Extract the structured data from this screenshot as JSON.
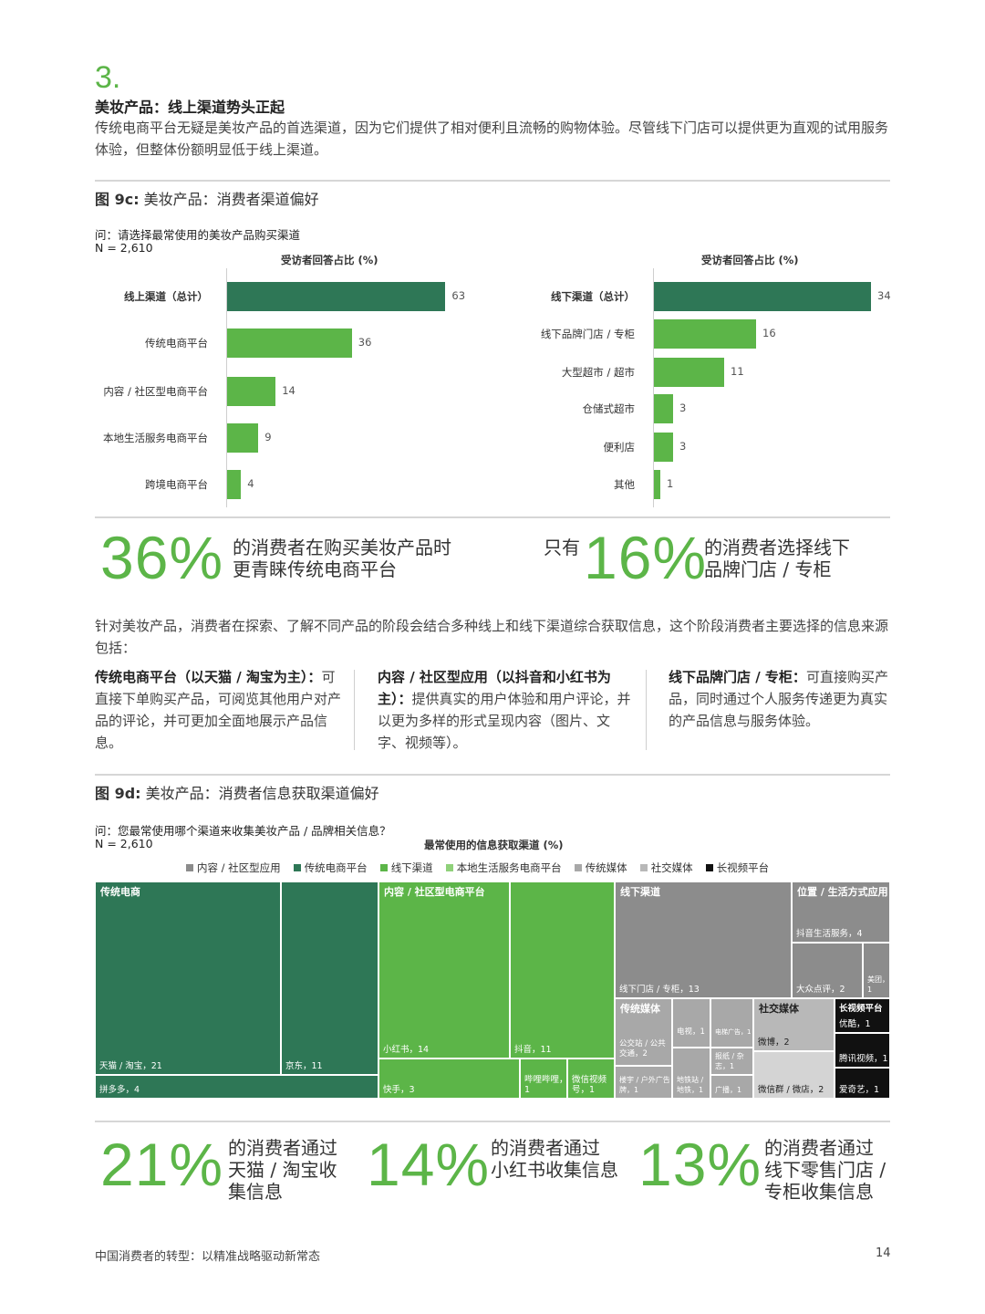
{
  "section": {
    "number": "3.",
    "title": "美妆产品：线上渠道势头正起",
    "intro": "传统电商平台无疑是美妆产品的首选渠道，因为它们提供了相对便利且流畅的购物体验。尽管线下门店可以提供更为直观的试用服务体验，但整体份额明显低于线上渠道。"
  },
  "fig9c": {
    "title_bold": "图 9c:",
    "title_rest": " 美妆产品：消费者渠道偏好",
    "question": "问：请选择最常使用的美妆产品购买渠道",
    "n": "N = 2,610"
  },
  "chart_data": [
    {
      "type": "bar",
      "orientation": "horizontal",
      "xlabel": "受访者回答占比 (%)",
      "categories": [
        "线上渠道（总计）",
        "传统电商平台",
        "内容 / 社区型电商平台",
        "本地生活服务电商平台",
        "跨境电商平台"
      ],
      "values": [
        63,
        36,
        14,
        9,
        4
      ],
      "colors": [
        "#2e7756",
        "#5cb548",
        "#5cb548",
        "#5cb548",
        "#5cb548"
      ]
    },
    {
      "type": "bar",
      "orientation": "horizontal",
      "xlabel": "受访者回答占比 (%)",
      "categories": [
        "线下渠道（总计）",
        "线下品牌门店 / 专柜",
        "大型超市 / 超市",
        "仓储式超市",
        "便利店",
        "其他"
      ],
      "values": [
        34,
        16,
        11,
        3,
        3,
        1
      ],
      "colors": [
        "#2e7756",
        "#5cb548",
        "#5cb548",
        "#5cb548",
        "#5cb548",
        "#5cb548"
      ]
    }
  ],
  "stats1": {
    "left_big": "36%",
    "left_text1": "的消费者在购买美妆产品时",
    "left_text2": "更青睐传统电商平台",
    "right_prefix": "只有",
    "right_big": "16%",
    "right_text1": "的消费者选择线下",
    "right_text2": "品牌门店 / 专柜"
  },
  "info": {
    "para": "针对美妆产品，消费者在探索、了解不同产品的阶段会结合多种线上和线下渠道综合获取信息，这个阶段消费者主要选择的信息来源包括：",
    "col1_bold": "传统电商平台（以天猫 / 淘宝为主）：",
    "col1_text": "可直接下单购买产品，可阅览其他用户对产品的评论，并可更加全面地展示产品信息。",
    "col2_bold": "内容 / 社区型应用（以抖音和小红书为主）：",
    "col2_text": "提供真实的用户体验和用户评论，并以更为多样的形式呈现内容（图片、文字、视频等）。",
    "col3_bold": "线下品牌门店 / 专柜：",
    "col3_text": "可直接购买产品，同时通过个人服务传递更为真实的产品信息与服务体验。"
  },
  "fig9d": {
    "title_bold": "图 9d:",
    "title_rest": " 美妆产品：消费者信息获取渠道偏好",
    "question": "问：您最常使用哪个渠道来收集美妆产品 / 品牌相关信息？",
    "n": "N = 2,610",
    "chart_title": "最常使用的信息获取渠道 (%)",
    "legend": [
      {
        "label": "内容 / 社区型应用",
        "color": "#8c8c8c"
      },
      {
        "label": "传统电商平台",
        "color": "#2e7756"
      },
      {
        "label": "线下渠道",
        "color": "#5cb548"
      },
      {
        "label": "本地生活服务电商平台",
        "color": "#8fd17a"
      },
      {
        "label": "传统媒体",
        "color": "#a8a8a8"
      },
      {
        "label": "社交媒体",
        "color": "#b8b8b8"
      },
      {
        "label": "长视频平台",
        "color": "#111111"
      }
    ],
    "groups": {
      "g1": "传统电商",
      "g2": "内容 / 社区型电商平台",
      "g3": "线下渠道",
      "g4": "位置 / 生活方式应用",
      "g5": "传统媒体",
      "g6": "社交媒体",
      "g7": "长视频平台"
    },
    "cells": {
      "tmall": "天猫 / 淘宝，21",
      "jd": "京东，11",
      "pdd": "拼多多，4",
      "xhs": "小红书，14",
      "douyin": "抖音，11",
      "kuaishou": "快手，3",
      "bilibili": "哔哩哔哩，1",
      "wechat_video": "微信视频号，1",
      "offline_store": "线下门店 / 专柜，13",
      "douyin_local": "抖音生活服务，4",
      "dianping": "大众点评，2",
      "meituan": "美团，1",
      "tv": "电视，1",
      "elevator": "电梯广告，1",
      "bus": "公交站 / 公共交通，2",
      "newspaper": "报纸 / 杂志，1",
      "building": "楼宇 / 户外广告牌，1",
      "subway": "地铁站 / 地铁，1",
      "radio": "广播，1",
      "weibo": "微博，2",
      "wechat_group": "微信群 / 微店，2",
      "youku": "优酷，1",
      "tencent": "腾讯视频，1",
      "iqiyi": "爱奇艺，1"
    }
  },
  "stats2": [
    {
      "big": "21%",
      "t1": "的消费者通过",
      "t2": "天猫 / 淘宝收",
      "t3": "集信息"
    },
    {
      "big": "14%",
      "t1": "的消费者通过",
      "t2": "小红书收集信息",
      "t3": ""
    },
    {
      "big": "13%",
      "t1": "的消费者通过",
      "t2": "线下零售门店 /",
      "t3": "专柜收集信息"
    }
  ],
  "footer": {
    "text": "中国消费者的转型：以精准战略驱动新常态",
    "page": "14"
  }
}
